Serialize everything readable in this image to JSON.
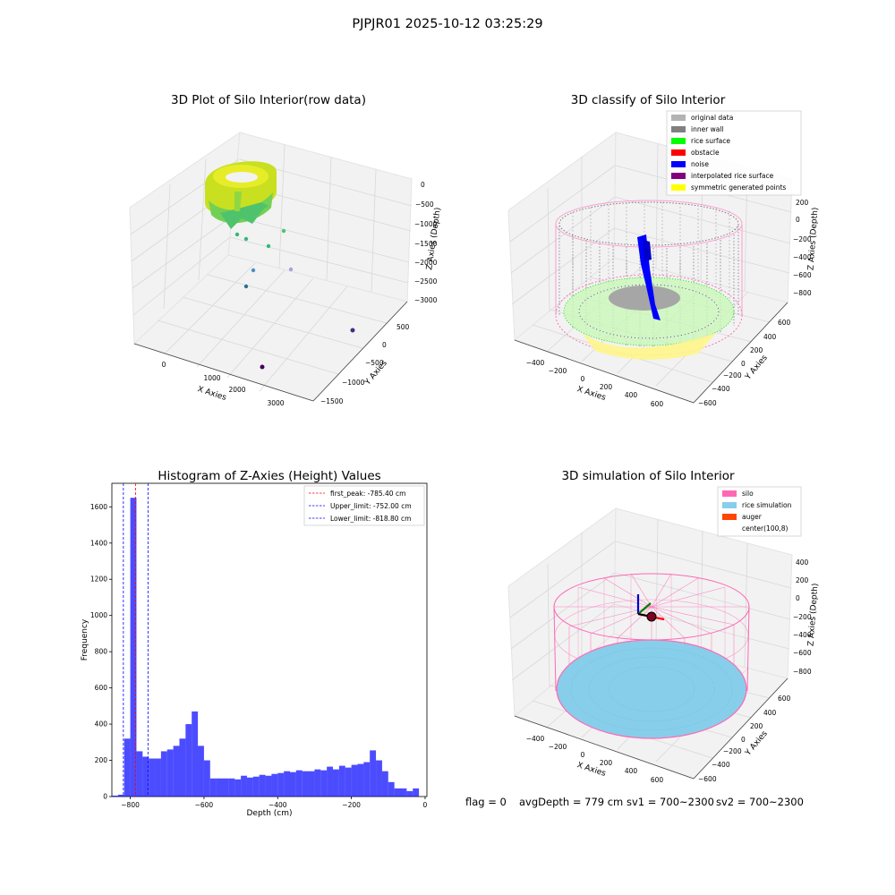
{
  "suptitle": "PJPJR01 2025-10-12 03:25:29",
  "footer": {
    "flag": "flag = 0",
    "avg_depth": "avgDepth = 779 cm",
    "sv1": "sv1 = 700~2300",
    "sv2": "sv2 = 700~2300"
  },
  "colors": {
    "original": "#b3b3b3",
    "inner_wall": "#808080",
    "rice_surface": "#00ff00",
    "obstacle": "#ff0000",
    "noise": "#0000ff",
    "interpolated": "#800080",
    "symmetric": "#ffff00",
    "silo": "#ff69b4",
    "rice_sim": "#87ceeb",
    "auger": "#ff4500",
    "hist_bar": "#0000ff"
  },
  "chart_data": [
    {
      "type": "scatter3d",
      "title": "3D Plot of Silo Interior(row data)",
      "xlabel": "X Axies",
      "ylabel": "Y Axies",
      "zlabel": "Z Axies (Depth)",
      "xticks": [
        "0",
        "1000",
        "2000",
        "3000"
      ],
      "yticks": [
        "500",
        "0",
        "−500",
        "−1000",
        "−1500"
      ],
      "zticks": [
        "0",
        "−500",
        "−1000",
        "−1500",
        "−2000",
        "−2500",
        "−3000"
      ],
      "outliers": [
        {
          "x": 2100,
          "y": -1050,
          "z": -3000
        },
        {
          "x": 3050,
          "y": 200,
          "z": -2300
        },
        {
          "x": 900,
          "y": -200,
          "z": -1400
        },
        {
          "x": 1300,
          "y": 250,
          "z": -1300
        },
        {
          "x": 1400,
          "y": 500,
          "z": -1000
        },
        {
          "x": 600,
          "y": 200,
          "z": -1100
        },
        {
          "x": 1700,
          "y": 550,
          "z": -900
        },
        {
          "x": 1800,
          "y": 100,
          "z": -1600
        }
      ]
    },
    {
      "type": "scatter3d",
      "title": "3D classify of Silo Interior",
      "xlabel": "X Axies",
      "ylabel": "Y Axies",
      "zlabel": "Z Axies (Depth)",
      "xticks": [
        "−400",
        "−200",
        "0",
        "200",
        "400",
        "600"
      ],
      "yticks": [
        "600",
        "400",
        "200",
        "0",
        "−200",
        "−400",
        "−600"
      ],
      "zticks": [
        "200",
        "0",
        "−200",
        "−400",
        "−600",
        "−800"
      ],
      "legend": [
        "original data",
        "inner wall",
        "rice surface",
        "obstacle",
        "noise",
        "interpolated rice surface",
        "symmetric generated points"
      ]
    },
    {
      "type": "bar",
      "title": "Histogram of Z-Axies (Height) Values",
      "xlabel": "Depth (cm)",
      "ylabel": "Frequency",
      "xlim": [
        -850,
        5
      ],
      "ylim": [
        0,
        1730
      ],
      "xticks": [
        -800,
        -600,
        -400,
        -200,
        0
      ],
      "xtick_labels": [
        "−800",
        "−600",
        "−400",
        "−200",
        "0"
      ],
      "yticks": [
        0,
        200,
        400,
        600,
        800,
        1000,
        1200,
        1400,
        1600
      ],
      "bin_width": 16.7,
      "bin_starts": [
        -850,
        -833.3,
        -816.7,
        -800,
        -783.3,
        -766.7,
        -750,
        -733.3,
        -716.7,
        -700,
        -683.3,
        -666.7,
        -650,
        -633.3,
        -616.7,
        -600,
        -583.3,
        -566.7,
        -550,
        -533.3,
        -516.7,
        -500,
        -483.3,
        -466.7,
        -450,
        -433.3,
        -416.7,
        -400,
        -383.3,
        -366.7,
        -350,
        -333.3,
        -316.7,
        -300,
        -283.3,
        -266.7,
        -250,
        -233.3,
        -216.7,
        -200,
        -183.3,
        -166.7,
        -150,
        -133.3,
        -116.7,
        -100,
        -83.3,
        -66.7,
        -50,
        -33.3,
        -16.7
      ],
      "values": [
        5,
        10,
        320,
        1650,
        250,
        220,
        210,
        210,
        250,
        260,
        280,
        320,
        400,
        470,
        280,
        200,
        100,
        100,
        100,
        100,
        95,
        115,
        105,
        110,
        120,
        115,
        125,
        130,
        140,
        135,
        145,
        140,
        140,
        150,
        145,
        165,
        150,
        170,
        160,
        175,
        180,
        190,
        255,
        200,
        140,
        80,
        45,
        45,
        30,
        45,
        0
      ],
      "lines": [
        {
          "label": "first_peak: -785.40 cm",
          "x": -785.4,
          "color": "#ff0000"
        },
        {
          "label": "Upper_limit: -752.00 cm",
          "x": -752.0,
          "color": "#0000ff"
        },
        {
          "label": "Lower_limit: -818.80 cm",
          "x": -818.8,
          "color": "#0000ff"
        }
      ]
    },
    {
      "type": "surface3d",
      "title": "3D simulation of Silo Interior",
      "xlabel": "X Axies",
      "ylabel": "Y Axies",
      "zlabel": "Z Axies (Depth)",
      "xticks": [
        "−400",
        "−200",
        "0",
        "200",
        "400",
        "600"
      ],
      "yticks": [
        "600",
        "400",
        "200",
        "0",
        "−200",
        "−400",
        "−600"
      ],
      "zticks": [
        "400",
        "200",
        "0",
        "−200",
        "−400",
        "−600",
        "−800"
      ],
      "legend": [
        "silo",
        "rice simulation",
        "auger",
        "center(100,8)"
      ]
    }
  ]
}
